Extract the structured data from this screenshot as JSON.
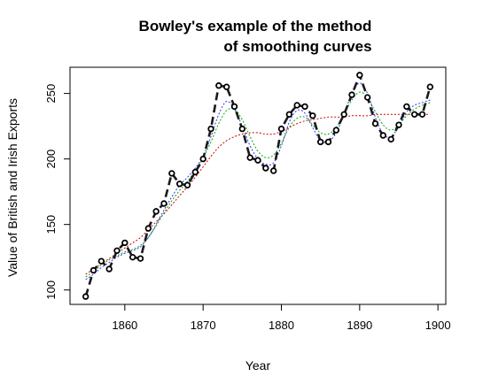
{
  "chart_data": {
    "type": "line",
    "title_line1": "Bowley's example of the method",
    "title_line2": "of smoothing curves",
    "xlabel": "Year",
    "ylabel": "Value of British and Irish Exports",
    "xlim": [
      1853,
      1901
    ],
    "ylim": [
      89,
      270
    ],
    "xticks": [
      1860,
      1870,
      1880,
      1890,
      1900
    ],
    "yticks": [
      100,
      150,
      200,
      250
    ],
    "grid": false,
    "colors": {
      "points": "#000000",
      "data_line": "#1a1a1a",
      "smooth_blue": "#3333ff",
      "smooth_green": "#00aa00",
      "smooth_red": "#cc0000"
    },
    "x": [
      1855,
      1856,
      1857,
      1858,
      1859,
      1860,
      1861,
      1862,
      1863,
      1864,
      1865,
      1866,
      1867,
      1868,
      1869,
      1870,
      1871,
      1872,
      1873,
      1874,
      1875,
      1876,
      1877,
      1878,
      1879,
      1880,
      1881,
      1882,
      1883,
      1884,
      1885,
      1886,
      1887,
      1888,
      1889,
      1890,
      1891,
      1892,
      1893,
      1894,
      1895,
      1896,
      1897,
      1898,
      1899
    ],
    "series": [
      {
        "name": "Exports",
        "style": "points+thick-dash",
        "values": [
          95,
          115,
          122,
          116,
          130,
          136,
          125,
          124,
          147,
          160,
          166,
          189,
          181,
          180,
          190,
          200,
          223,
          256,
          255,
          240,
          223,
          201,
          199,
          193,
          191,
          223,
          234,
          241,
          240,
          233,
          213,
          213,
          222,
          234,
          249,
          264,
          247,
          227,
          218,
          215,
          226,
          240,
          234,
          234,
          255
        ]
      },
      {
        "name": "Smooth-blue",
        "style": "dotted",
        "values": [
          108,
          112,
          117,
          121,
          125,
          128,
          130,
          133,
          140,
          150,
          161,
          171,
          180,
          186,
          193,
          202,
          217,
          234,
          244,
          238,
          225,
          210,
          200,
          196,
          197,
          210,
          228,
          237,
          235,
          224,
          214,
          213,
          220,
          234,
          250,
          258,
          250,
          232,
          219,
          217,
          225,
          236,
          241,
          243,
          245
        ]
      },
      {
        "name": "Smooth-green",
        "style": "dotted",
        "values": [
          110,
          114,
          119,
          123,
          126,
          129,
          131,
          134,
          140,
          149,
          159,
          168,
          176,
          183,
          191,
          201,
          213,
          227,
          237,
          238,
          230,
          217,
          206,
          201,
          203,
          212,
          224,
          231,
          232,
          226,
          220,
          219,
          224,
          234,
          245,
          251,
          247,
          236,
          226,
          222,
          226,
          233,
          238,
          241,
          243
        ]
      },
      {
        "name": "Smooth-red",
        "style": "dotted",
        "values": [
          112,
          116,
          120,
          124,
          128,
          132,
          136,
          140,
          146,
          152,
          158,
          165,
          172,
          179,
          186,
          194,
          202,
          209,
          214,
          217,
          219,
          220,
          220,
          219,
          219,
          221,
          224,
          227,
          229,
          230,
          231,
          232,
          232,
          232,
          233,
          233,
          233,
          234,
          234,
          234,
          234,
          234,
          234,
          234,
          234
        ]
      }
    ]
  }
}
